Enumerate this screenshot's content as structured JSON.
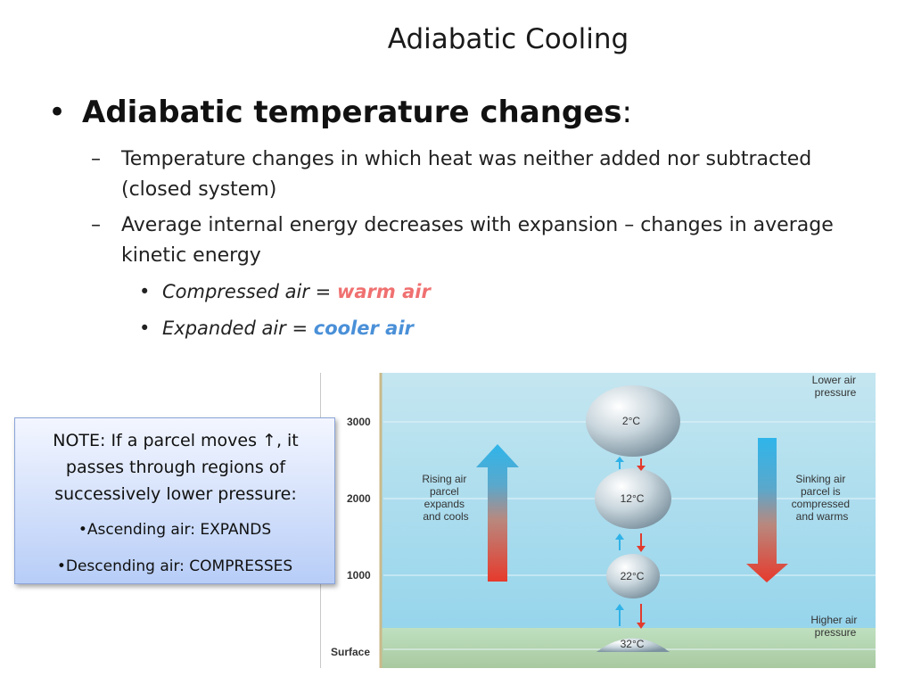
{
  "slide": {
    "title": "Adiabatic Cooling",
    "bullet": {
      "heading": "Adiabatic temperature changes",
      "colon": ":",
      "sub_items": [
        "Temperature changes in which heat was neither added nor subtracted (closed system)",
        "Average internal energy decreases with expansion – changes in average kinetic energy"
      ],
      "sub_sub_items": [
        {
          "prefix": "Compressed air = ",
          "highlight": "warm air",
          "highlight_color": "#f07070"
        },
        {
          "prefix": "Expanded air = ",
          "highlight": "cooler air",
          "highlight_color": "#4a90d8"
        }
      ]
    }
  },
  "figure": {
    "altitude_labels": [
      "3000",
      "2000",
      "1000",
      "Surface"
    ],
    "top_right_label": "Lower air pressure",
    "bottom_right_label": "Higher air pressure",
    "left_label": "Rising air parcel expands and cools",
    "right_label": "Sinking air parcel is compressed and warms",
    "parcel_temps": [
      "2°C",
      "12°C",
      "22°C",
      "32°C"
    ],
    "colors": {
      "warm": "#e23b2e",
      "cool": "#2fb2e8",
      "sky_top": "#bfe4ef",
      "sky_bottom": "#8fd3ec"
    }
  },
  "note": {
    "main": "NOTE: If a parcel moves ↑, it passes through regions of successively lower pressure:",
    "line1": "•Ascending air: EXPANDS",
    "line2": "•Descending air: COMPRESSES"
  }
}
